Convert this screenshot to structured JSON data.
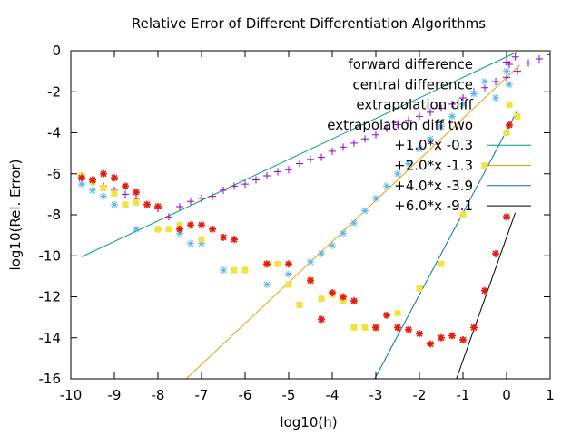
{
  "chart_data": {
    "type": "scatter",
    "title": "Relative Error of Different Differentiation Algorithms",
    "xlabel": "log10(h)",
    "ylabel": "log10(Rel. Error)",
    "xlim": [
      -10,
      1
    ],
    "ylim": [
      -16,
      0
    ],
    "x_ticks": [
      -10,
      -9,
      -8,
      -7,
      -6,
      -5,
      -4,
      -3,
      -2,
      -1,
      0,
      1
    ],
    "y_ticks": [
      0,
      -2,
      -4,
      -6,
      -8,
      -10,
      -12,
      -14,
      -16
    ],
    "grid": false,
    "legend_position": "top-right",
    "series": [
      {
        "name": "forward difference",
        "marker": "plus",
        "color": "#9400d3",
        "points": [
          [
            -9.75,
            -6.1
          ],
          [
            -9.5,
            -6.4
          ],
          [
            -9.25,
            -6.6
          ],
          [
            -9.0,
            -6.8
          ],
          [
            -8.75,
            -7.0
          ],
          [
            -8.5,
            -7.2
          ],
          [
            -8.25,
            -7.5
          ],
          [
            -8.0,
            -7.7
          ],
          [
            -7.75,
            -8.1
          ],
          [
            -7.5,
            -7.6
          ],
          [
            -7.25,
            -7.35
          ],
          [
            -7.0,
            -7.2
          ],
          [
            -6.75,
            -7.1
          ],
          [
            -6.5,
            -6.8
          ],
          [
            -6.25,
            -6.6
          ],
          [
            -6.0,
            -6.5
          ],
          [
            -5.75,
            -6.3
          ],
          [
            -5.5,
            -6.1
          ],
          [
            -5.25,
            -5.9
          ],
          [
            -5.0,
            -5.8
          ],
          [
            -4.75,
            -5.5
          ],
          [
            -4.5,
            -5.3
          ],
          [
            -4.25,
            -5.2
          ],
          [
            -4.0,
            -4.9
          ],
          [
            -3.75,
            -4.7
          ],
          [
            -3.5,
            -4.5
          ],
          [
            -3.25,
            -4.3
          ],
          [
            -3.0,
            -4.1
          ],
          [
            -2.75,
            -3.8
          ],
          [
            -2.5,
            -3.6
          ],
          [
            -2.25,
            -3.4
          ],
          [
            -2.0,
            -3.2
          ],
          [
            -1.75,
            -3.0
          ],
          [
            -1.5,
            -2.8
          ],
          [
            -1.25,
            -2.6
          ],
          [
            -1.0,
            -2.3
          ],
          [
            -0.75,
            -2.0
          ],
          [
            -0.5,
            -1.8
          ],
          [
            -0.25,
            -1.5
          ],
          [
            0.0,
            -1.3
          ],
          [
            0.25,
            -1.0
          ],
          [
            0.5,
            -0.6
          ],
          [
            0.75,
            -0.4
          ],
          [
            1.0,
            -0.2
          ],
          [
            0.0,
            -0.55
          ],
          [
            0.2,
            -0.3
          ]
        ]
      },
      {
        "name": "central difference",
        "marker": "asterisk",
        "color": "#56b4e9",
        "points": [
          [
            -9.75,
            -6.5
          ],
          [
            -9.5,
            -6.8
          ],
          [
            -9.25,
            -7.1
          ],
          [
            -9.0,
            -7.5
          ],
          [
            -8.5,
            -8.7
          ],
          [
            -8.0,
            -8.7
          ],
          [
            -7.5,
            -8.9
          ],
          [
            -7.25,
            -9.4
          ],
          [
            -7.0,
            -9.4
          ],
          [
            -6.5,
            -10.7
          ],
          [
            -5.5,
            -11.4
          ],
          [
            -5.0,
            -10.9
          ],
          [
            -4.5,
            -10.3
          ],
          [
            -4.25,
            -9.9
          ],
          [
            -4.0,
            -9.5
          ],
          [
            -3.75,
            -8.9
          ],
          [
            -3.5,
            -8.4
          ],
          [
            -3.25,
            -7.8
          ],
          [
            -3.0,
            -7.2
          ],
          [
            -2.75,
            -6.6
          ],
          [
            -2.5,
            -6.0
          ],
          [
            -2.25,
            -5.5
          ],
          [
            -2.0,
            -4.8
          ],
          [
            -1.75,
            -4.3
          ],
          [
            -1.5,
            -3.7
          ],
          [
            -1.25,
            -3.2
          ],
          [
            -1.0,
            -2.6
          ],
          [
            -0.75,
            -2.1
          ],
          [
            -0.5,
            -1.5
          ],
          [
            -0.25,
            -2.3
          ],
          [
            0.0,
            -1.0
          ]
        ]
      },
      {
        "name": "extrapolation diff",
        "marker": "square",
        "color": "#f0e442",
        "points": [
          [
            -9.75,
            -6.1
          ],
          [
            -9.5,
            -6.4
          ],
          [
            -9.25,
            -6.7
          ],
          [
            -9.0,
            -6.95
          ],
          [
            -8.75,
            -7.5
          ],
          [
            -8.5,
            -7.4
          ],
          [
            -8.0,
            -8.7
          ],
          [
            -7.75,
            -8.7
          ],
          [
            -7.5,
            -8.5
          ],
          [
            -7.0,
            -9.2
          ],
          [
            -6.25,
            -10.7
          ],
          [
            -6.0,
            -10.7
          ],
          [
            -5.5,
            -10.4
          ],
          [
            -5.25,
            -10.4
          ],
          [
            -5.0,
            -11.4
          ],
          [
            -4.75,
            -12.4
          ],
          [
            -4.5,
            -11.2
          ],
          [
            -4.25,
            -12.1
          ],
          [
            -4.0,
            -11.9
          ],
          [
            -3.75,
            -12.2
          ],
          [
            -3.5,
            -13.5
          ],
          [
            -3.25,
            -13.5
          ],
          [
            -3.0,
            -13.5
          ],
          [
            -2.5,
            -12.8
          ],
          [
            -2.0,
            -11.6
          ],
          [
            -1.5,
            -10.4
          ],
          [
            -1.0,
            -8.0
          ],
          [
            -0.5,
            -5.6
          ],
          [
            0.0,
            -4.0
          ],
          [
            0.25,
            -3.2
          ]
        ]
      },
      {
        "name": "extrapolation diff two",
        "marker": "star",
        "color": "#e51e10",
        "points": [
          [
            -9.75,
            -6.2
          ],
          [
            -9.5,
            -6.3
          ],
          [
            -9.25,
            -6.0
          ],
          [
            -9.0,
            -6.2
          ],
          [
            -8.75,
            -6.6
          ],
          [
            -8.5,
            -6.9
          ],
          [
            -8.25,
            -7.5
          ],
          [
            -8.0,
            -7.6
          ],
          [
            -7.5,
            -8.7
          ],
          [
            -7.25,
            -8.5
          ],
          [
            -7.0,
            -8.5
          ],
          [
            -6.75,
            -8.7
          ],
          [
            -6.5,
            -9.1
          ],
          [
            -6.25,
            -9.2
          ],
          [
            -5.5,
            -10.4
          ],
          [
            -5.0,
            -10.4
          ],
          [
            -4.5,
            -11.2
          ],
          [
            -4.25,
            -13.1
          ],
          [
            -4.0,
            -11.8
          ],
          [
            -3.75,
            -12.0
          ],
          [
            -3.5,
            -12.2
          ],
          [
            -3.0,
            -13.5
          ],
          [
            -2.75,
            -12.9
          ],
          [
            -2.5,
            -13.5
          ],
          [
            -2.25,
            -13.6
          ],
          [
            -2.0,
            -13.8
          ],
          [
            -1.75,
            -14.3
          ],
          [
            -1.5,
            -14.0
          ],
          [
            -1.25,
            -13.9
          ],
          [
            -1.0,
            -14.1
          ],
          [
            -0.75,
            -13.5
          ],
          [
            -0.5,
            -11.7
          ],
          [
            -0.25,
            -9.9
          ],
          [
            0.0,
            -8.1
          ]
        ]
      },
      {
        "name": "+1.0*x -0.3",
        "type": "line",
        "color": "#009e73",
        "slope": 1.0,
        "intercept": -0.3,
        "x_range": [
          -9.75,
          0.25
        ]
      },
      {
        "name": "+2.0*x -1.3",
        "type": "line",
        "color": "#e69f00",
        "slope": 2.0,
        "intercept": -1.3,
        "x_range": [
          -7.35,
          0.3
        ]
      },
      {
        "name": "+4.0*x -3.9",
        "type": "line",
        "color": "#0072b2",
        "slope": 4.0,
        "intercept": -3.9,
        "x_range": [
          -3.025,
          0.25
        ]
      },
      {
        "name": "+6.0*x -9.1",
        "type": "line",
        "color": "#000000",
        "slope": 6.0,
        "intercept": -9.1,
        "x_range": [
          -1.15,
          0.2
        ]
      }
    ]
  }
}
